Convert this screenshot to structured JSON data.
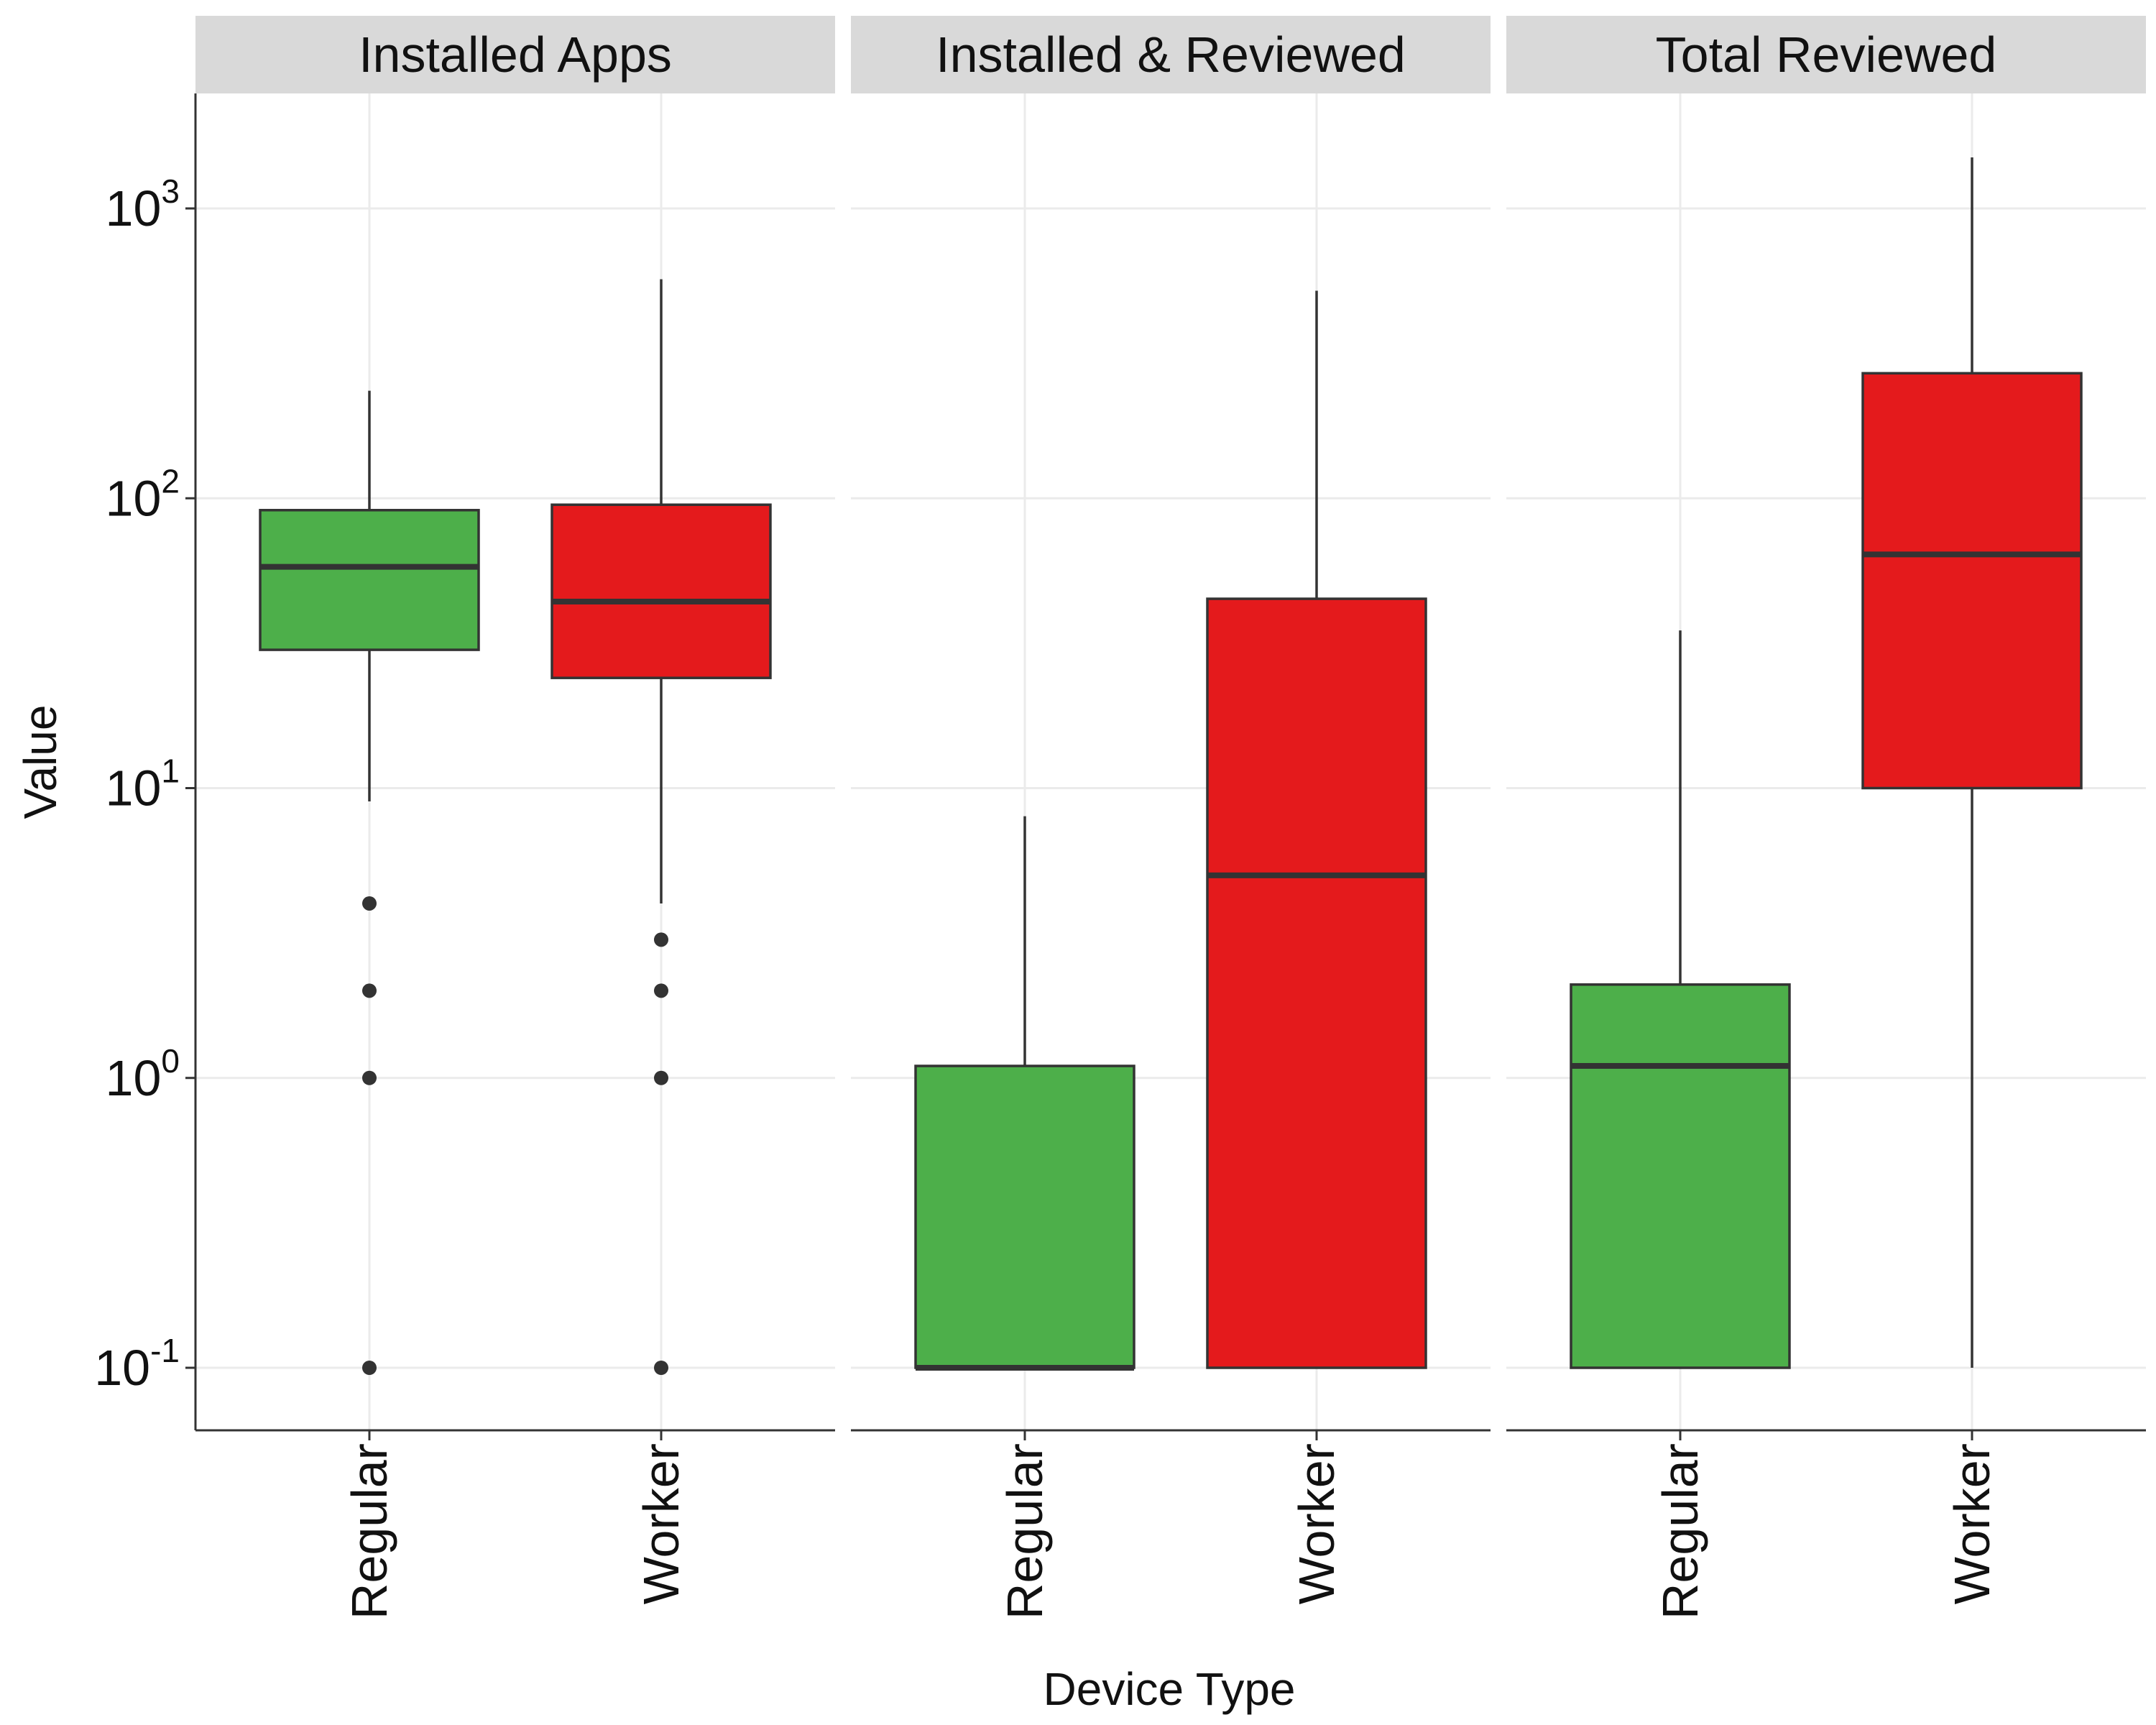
{
  "chart_data": {
    "type": "boxplot",
    "y_scale": "log10",
    "ylim": [
      0.06,
      2500
    ],
    "ylabel": "Value",
    "xlabel": "Device Type",
    "y_ticks": [
      0.1,
      1,
      10,
      100,
      1000
    ],
    "y_tick_labels": [
      {
        "base": "10",
        "exp": "-1"
      },
      {
        "base": "10",
        "exp": "0"
      },
      {
        "base": "10",
        "exp": "1"
      },
      {
        "base": "10",
        "exp": "2"
      },
      {
        "base": "10",
        "exp": "3"
      }
    ],
    "categories": [
      "Regular",
      "Worker"
    ],
    "colors": {
      "Regular": "#4daf4a",
      "Worker": "#e41a1c"
    },
    "grid": true,
    "legend": "none",
    "panels": [
      {
        "title": "Installed Apps",
        "boxes": [
          {
            "category": "Regular",
            "whisker_low": 9,
            "q1": 30,
            "median": 58,
            "q3": 91,
            "whisker_high": 235,
            "outliers": [
              4,
              2,
              1,
              0.1
            ]
          },
          {
            "category": "Worker",
            "whisker_low": 4,
            "q1": 24,
            "median": 44,
            "q3": 95,
            "whisker_high": 570,
            "outliers": [
              3,
              2,
              1,
              0.1
            ]
          }
        ]
      },
      {
        "title": "Installed & Reviewed",
        "boxes": [
          {
            "category": "Regular",
            "whisker_low": 0.1,
            "q1": 0.1,
            "median": 0.1,
            "q3": 1.1,
            "whisker_high": 8,
            "outliers": []
          },
          {
            "category": "Worker",
            "whisker_low": 0.1,
            "q1": 0.1,
            "median": 5,
            "q3": 45,
            "whisker_high": 520,
            "outliers": []
          }
        ]
      },
      {
        "title": "Total Reviewed",
        "boxes": [
          {
            "category": "Regular",
            "whisker_low": 0.1,
            "q1": 0.1,
            "median": 1.1,
            "q3": 2.1,
            "whisker_high": 35,
            "outliers": []
          },
          {
            "category": "Worker",
            "whisker_low": 0.1,
            "q1": 10,
            "median": 64,
            "q3": 270,
            "whisker_high": 1500,
            "outliers": []
          }
        ]
      }
    ]
  }
}
